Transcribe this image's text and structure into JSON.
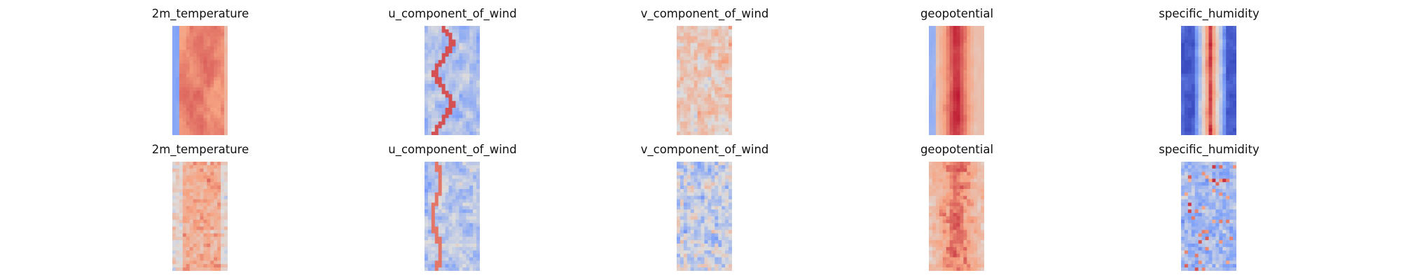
{
  "chart_data": {
    "type": "heatmap",
    "colormap": "coolwarm",
    "axes": "off",
    "layout": {
      "rows": 2,
      "cols": 5
    },
    "panels": [
      {
        "title": "2m_temperature",
        "row": 0,
        "col": 0,
        "pattern": "temp_truth"
      },
      {
        "title": "u_component_of_wind",
        "row": 0,
        "col": 1,
        "pattern": "u_truth"
      },
      {
        "title": "v_component_of_wind",
        "row": 0,
        "col": 2,
        "pattern": "v_truth"
      },
      {
        "title": "geopotential",
        "row": 0,
        "col": 3,
        "pattern": "geo_truth"
      },
      {
        "title": "specific_humidity",
        "row": 0,
        "col": 4,
        "pattern": "hum_truth"
      },
      {
        "title": "2m_temperature",
        "row": 1,
        "col": 0,
        "pattern": "temp_pred"
      },
      {
        "title": "u_component_of_wind",
        "row": 1,
        "col": 1,
        "pattern": "u_pred"
      },
      {
        "title": "v_component_of_wind",
        "row": 1,
        "col": 2,
        "pattern": "v_pred"
      },
      {
        "title": "geopotential",
        "row": 1,
        "col": 3,
        "pattern": "geo_pred"
      },
      {
        "title": "specific_humidity",
        "row": 1,
        "col": 4,
        "pattern": "hum_pred"
      }
    ]
  }
}
